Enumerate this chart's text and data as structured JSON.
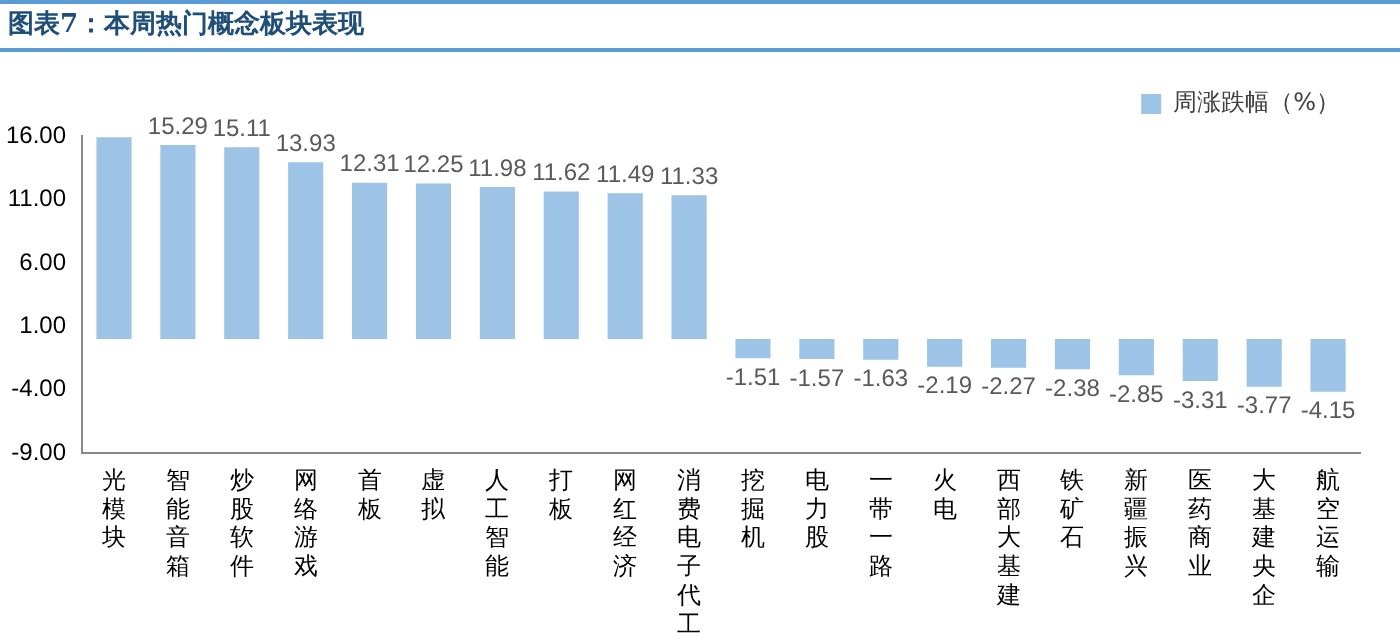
{
  "chart_data": {
    "type": "bar",
    "title": "图表7：本周热门概念板块表现",
    "categories": [
      "光模块",
      "智能音箱",
      "炒股软件",
      "网络游戏",
      "首板",
      "虚拟",
      "人工智能",
      "打板",
      "网红经济",
      "消费电子代工",
      "挖掘机",
      "电力股",
      "一带一路",
      "火电",
      "西部大基建",
      "铁矿石",
      "新疆振兴",
      "医药商业",
      "大基建央企",
      "航空运输"
    ],
    "series": [
      {
        "name": "周涨跌幅（%）",
        "color": "#9dc3e6",
        "values": [
          15.9,
          15.29,
          15.11,
          13.93,
          12.31,
          12.25,
          11.98,
          11.62,
          11.49,
          11.33,
          -1.51,
          -1.57,
          -1.63,
          -2.19,
          -2.27,
          -2.38,
          -2.85,
          -3.31,
          -3.77,
          -4.15
        ],
        "value_labels": [
          null,
          "15.29",
          "15.11",
          "13.93",
          "12.31",
          "12.25",
          "11.98",
          "11.62",
          "11.49",
          "11.33",
          "-1.51",
          "-1.57",
          "-1.63",
          "-2.19",
          "-2.27",
          "-2.38",
          "-2.85",
          "-3.31",
          "-3.77",
          "-4.15"
        ]
      }
    ],
    "ylim": [
      -9,
      16
    ],
    "yticks": [
      {
        "value": -9,
        "label": "-9.00"
      },
      {
        "value": -4,
        "label": "-4.00"
      },
      {
        "value": 1,
        "label": "1.00"
      },
      {
        "value": 6,
        "label": "6.00"
      },
      {
        "value": 11,
        "label": "11.00"
      },
      {
        "value": 16,
        "label": "16.00"
      }
    ],
    "grid": false,
    "legend": "top right"
  }
}
